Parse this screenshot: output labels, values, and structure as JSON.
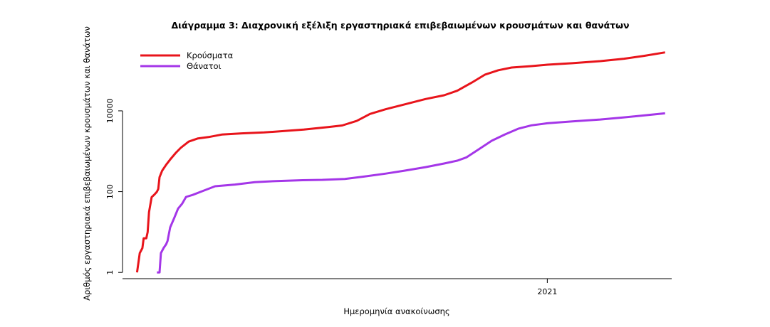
{
  "chart_data": {
    "type": "line",
    "title": "Διάγραμμα 3: Διαχρονική εξέλιξη εργαστηριακά επιβεβαιωμένων κρουσμάτων και θανάτων",
    "xlabel": "Ημερομηνία ανακοίνωσης",
    "ylabel": "Αριθμός εργαστηριακά επιβεβαιωμένων κρουσμάτων και θανάτων",
    "x_scale": "date",
    "xlim": [
      "2020-02-15",
      "2021-04-05"
    ],
    "x_ticks": [
      {
        "date": "2021-01-01",
        "label": "2021"
      }
    ],
    "y_scale": "log",
    "ylim": [
      0.7,
      450000
    ],
    "y_ticks": [
      {
        "value": 1,
        "label": "1"
      },
      {
        "value": 100,
        "label": "100"
      },
      {
        "value": 10000,
        "label": "10000"
      }
    ],
    "legend": "top-left",
    "grid": false,
    "series": [
      {
        "name": "Κρούσματα",
        "color": "#e8141b",
        "points": [
          [
            "2020-02-26",
            1
          ],
          [
            "2020-02-28",
            3
          ],
          [
            "2020-03-01",
            4
          ],
          [
            "2020-03-02",
            7
          ],
          [
            "2020-03-04",
            7
          ],
          [
            "2020-03-05",
            10
          ],
          [
            "2020-03-06",
            31
          ],
          [
            "2020-03-08",
            73
          ],
          [
            "2020-03-10",
            84
          ],
          [
            "2020-03-12",
            99
          ],
          [
            "2020-03-13",
            117
          ],
          [
            "2020-03-14",
            228
          ],
          [
            "2020-03-16",
            331
          ],
          [
            "2020-03-19",
            464
          ],
          [
            "2020-03-22",
            624
          ],
          [
            "2020-03-26",
            892
          ],
          [
            "2020-03-30",
            1212
          ],
          [
            "2020-04-05",
            1735
          ],
          [
            "2020-04-12",
            2081
          ],
          [
            "2020-04-20",
            2245
          ],
          [
            "2020-04-30",
            2591
          ],
          [
            "2020-05-15",
            2770
          ],
          [
            "2020-06-01",
            2918
          ],
          [
            "2020-06-20",
            3227
          ],
          [
            "2020-07-01",
            3432
          ],
          [
            "2020-07-20",
            3983
          ],
          [
            "2020-07-30",
            4337
          ],
          [
            "2020-08-10",
            5623
          ],
          [
            "2020-08-20",
            8381
          ],
          [
            "2020-09-01",
            10998
          ],
          [
            "2020-09-15",
            14400
          ],
          [
            "2020-10-01",
            19613
          ],
          [
            "2020-10-15",
            24318
          ],
          [
            "2020-10-25",
            31496
          ],
          [
            "2020-11-05",
            50248
          ],
          [
            "2020-11-15",
            78937
          ],
          [
            "2020-11-25",
            101287
          ],
          [
            "2020-12-05",
            118000
          ],
          [
            "2020-12-20",
            128000
          ],
          [
            "2021-01-01",
            138850
          ],
          [
            "2021-01-20",
            151000
          ],
          [
            "2021-02-10",
            170000
          ],
          [
            "2021-02-28",
            195000
          ],
          [
            "2021-03-15",
            230000
          ],
          [
            "2021-03-31",
            280000
          ]
        ]
      },
      {
        "name": "Θάνατοι",
        "color": "#a436e8",
        "points": [
          [
            "2020-03-12",
            1
          ],
          [
            "2020-03-14",
            1
          ],
          [
            "2020-03-15",
            3
          ],
          [
            "2020-03-17",
            4
          ],
          [
            "2020-03-19",
            5
          ],
          [
            "2020-03-20",
            6
          ],
          [
            "2020-03-22",
            13
          ],
          [
            "2020-03-25",
            22
          ],
          [
            "2020-03-28",
            38
          ],
          [
            "2020-03-31",
            50
          ],
          [
            "2020-04-03",
            74
          ],
          [
            "2020-04-08",
            83
          ],
          [
            "2020-04-15",
            102
          ],
          [
            "2020-04-25",
            136
          ],
          [
            "2020-05-10",
            150
          ],
          [
            "2020-05-25",
            171
          ],
          [
            "2020-06-10",
            183
          ],
          [
            "2020-06-30",
            192
          ],
          [
            "2020-07-15",
            196
          ],
          [
            "2020-08-01",
            206
          ],
          [
            "2020-08-15",
            235
          ],
          [
            "2020-09-01",
            279
          ],
          [
            "2020-09-15",
            330
          ],
          [
            "2020-10-01",
            405
          ],
          [
            "2020-10-15",
            497
          ],
          [
            "2020-10-25",
            585
          ],
          [
            "2020-11-01",
            707
          ],
          [
            "2020-11-10",
            1106
          ],
          [
            "2020-11-20",
            1815
          ],
          [
            "2020-11-30",
            2606
          ],
          [
            "2020-12-10",
            3612
          ],
          [
            "2020-12-20",
            4377
          ],
          [
            "2021-01-01",
            4921
          ],
          [
            "2021-01-20",
            5500
          ],
          [
            "2021-02-10",
            6100
          ],
          [
            "2021-02-28",
            6900
          ],
          [
            "2021-03-15",
            7700
          ],
          [
            "2021-03-31",
            8700
          ]
        ]
      }
    ]
  }
}
